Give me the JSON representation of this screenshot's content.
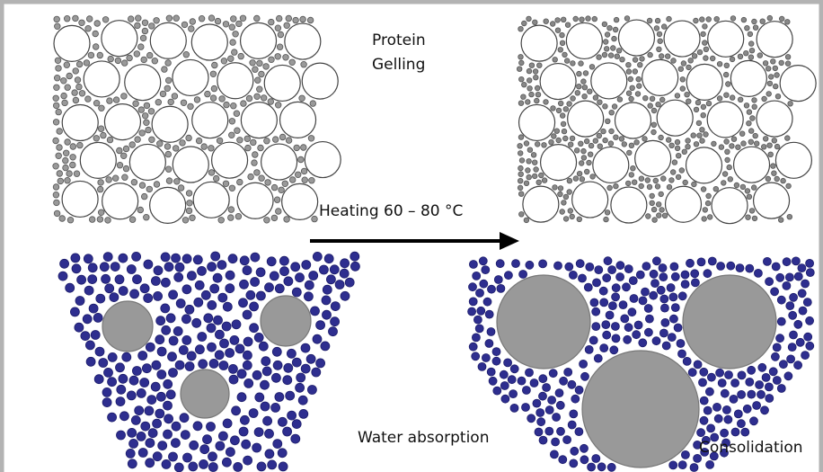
{
  "labels": {
    "protein": "Protein",
    "gelling": "Gelling",
    "heating": "Heating 60 – 80 °C",
    "water_absorption": "Water absorption",
    "consolidation": "Consolidation"
  }
}
